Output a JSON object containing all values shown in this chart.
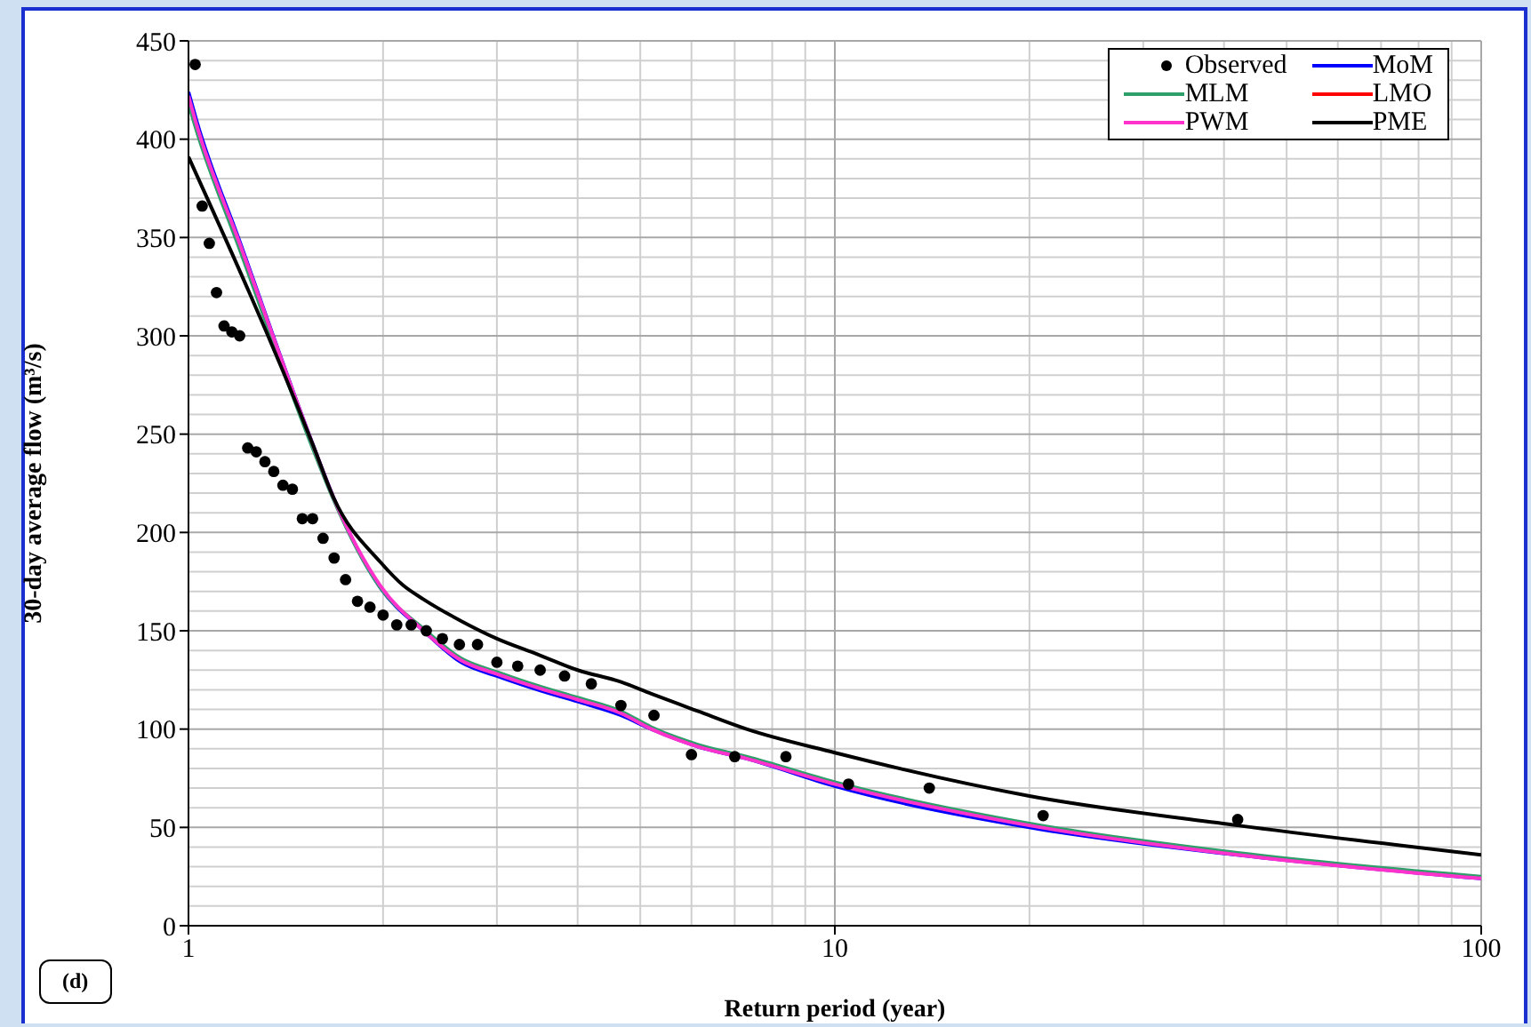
{
  "chart_data": {
    "type": "line",
    "xlabel": "Return period (year)",
    "ylabel": "30-day average flow (m³/s)",
    "log": "x",
    "xlim": [
      1,
      100
    ],
    "xticks": [
      1,
      10,
      100
    ],
    "ylim": [
      0,
      450
    ],
    "yticks": [
      0,
      50,
      100,
      150,
      200,
      250,
      300,
      350,
      400,
      450
    ],
    "grid": true,
    "legend": "top right",
    "marker": "none",
    "line_style": "solid",
    "annotations": [
      "(d)"
    ],
    "series": [
      {
        "name": "Observed",
        "type": "scatter",
        "marker": "circle",
        "color": "#000000",
        "x": [
          1.024,
          1.05,
          1.077,
          1.105,
          1.135,
          1.167,
          1.2,
          1.235,
          1.273,
          1.313,
          1.355,
          1.4,
          1.448,
          1.5,
          1.556,
          1.615,
          1.68,
          1.75,
          1.826,
          1.909,
          2,
          2.1,
          2.211,
          2.333,
          2.471,
          2.625,
          2.8,
          3,
          3.231,
          3.5,
          3.818,
          4.2,
          4.667,
          5.25,
          6,
          7,
          8.4,
          10.5,
          14,
          21,
          42
        ],
        "values": [
          438,
          366,
          347,
          322,
          305,
          302,
          300,
          243,
          241,
          236,
          231,
          224,
          222,
          207,
          207,
          197,
          187,
          176,
          165,
          162,
          158,
          153,
          153,
          150,
          146,
          143,
          143,
          134,
          132,
          130,
          127,
          123,
          112,
          107,
          87,
          86,
          86,
          72,
          70,
          56,
          54
        ]
      },
      {
        "name": "MoM",
        "color": "#0000ff",
        "x": [
          1,
          1.03,
          1.2,
          1.556,
          1.675,
          1.98,
          2.31,
          2.64,
          3,
          3.47,
          4,
          4.67,
          5.2,
          6.15,
          7.3,
          10,
          20,
          42,
          100
        ],
        "values": [
          424,
          409,
          348,
          245,
          218,
          172,
          150,
          134,
          127,
          120,
          114,
          107,
          100,
          91,
          85,
          71,
          50,
          36,
          24
        ]
      },
      {
        "name": "MLM",
        "color": "#2e9e6a",
        "x": [
          1,
          1.03,
          1.2,
          1.556,
          1.675,
          1.98,
          2.31,
          2.64,
          3,
          3.47,
          4,
          4.67,
          5.2,
          6.15,
          7.3,
          10,
          20,
          42,
          100
        ],
        "values": [
          418,
          404,
          344,
          243,
          217,
          172,
          151,
          136,
          129,
          122,
          116,
          109,
          101,
          92,
          86,
          73,
          52,
          37,
          25
        ]
      },
      {
        "name": "LMO",
        "color": "#ff0000"
      },
      {
        "name": "PWM",
        "color": "#ff33cc",
        "x": [
          1,
          1.03,
          1.2,
          1.556,
          1.675,
          1.98,
          2.31,
          2.64,
          3,
          3.47,
          4,
          4.67,
          5.2,
          6.15,
          7.3,
          10,
          20,
          42,
          100
        ],
        "values": [
          422,
          407,
          347,
          245,
          218,
          173,
          150,
          135,
          128,
          121,
          115,
          108,
          100,
          91,
          85,
          72,
          51,
          36,
          24
        ]
      },
      {
        "name": "PME",
        "color": "#000000",
        "x": [
          1,
          1.556,
          1.675,
          1.98,
          2.15,
          2.31,
          2.64,
          3,
          3.47,
          4,
          4.67,
          5.2,
          6.15,
          7.3,
          10,
          20,
          42,
          100
        ],
        "values": [
          391,
          245,
          218,
          185,
          173,
          166,
          155,
          146,
          138,
          130,
          124,
          118,
          109,
          100,
          88,
          66,
          51,
          36
        ]
      }
    ]
  }
}
